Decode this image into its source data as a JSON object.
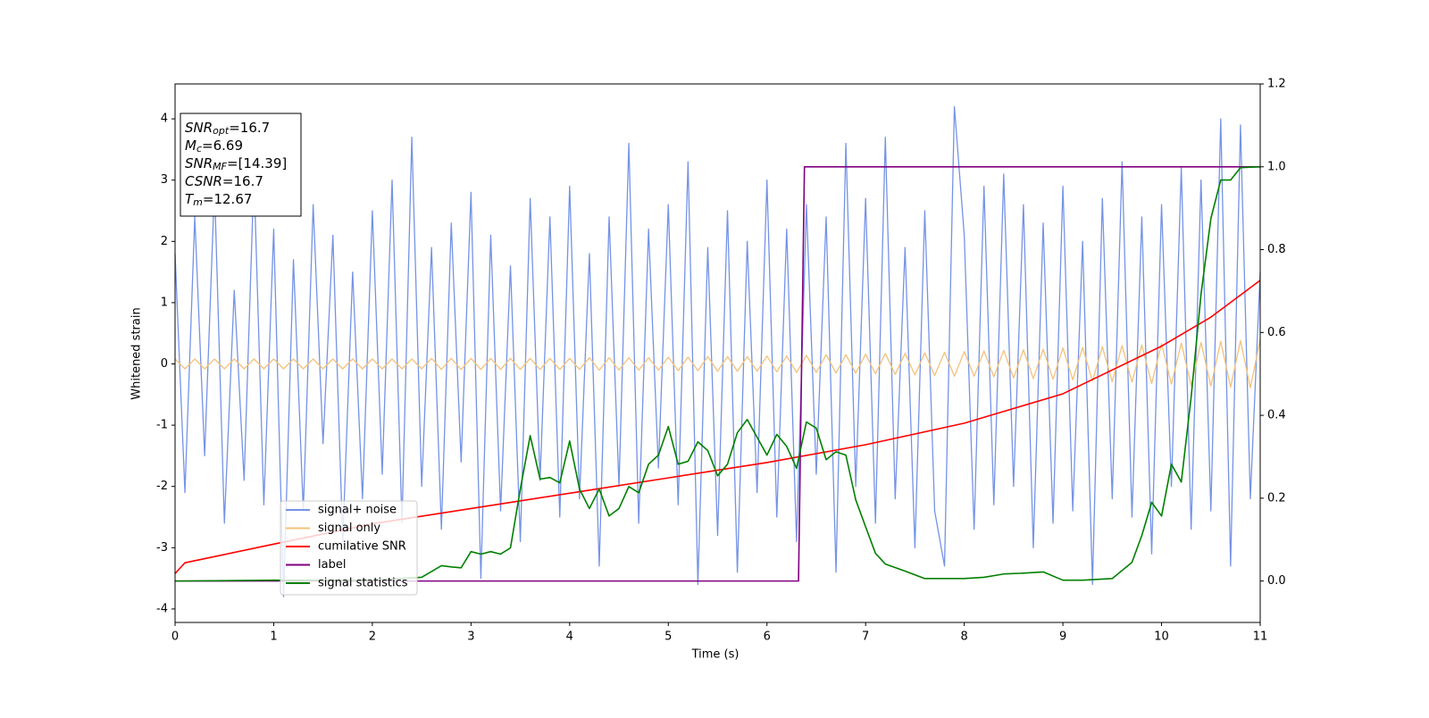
{
  "chart_data": {
    "type": "line",
    "xlabel": "Time (s)",
    "ylabel": "Whitened strain",
    "xlim": [
      0,
      11
    ],
    "xticks": [
      0,
      1,
      2,
      3,
      4,
      5,
      6,
      7,
      8,
      9,
      10,
      11
    ],
    "ylim": [
      -4.22,
      4.57
    ],
    "yticks": [
      -4,
      -3,
      -2,
      -1,
      0,
      1,
      2,
      3,
      4
    ],
    "y2lim": [
      -0.1,
      1.2
    ],
    "y2ticks": [
      {
        "value": 0,
        "label": "0.0"
      },
      0.2,
      0.4,
      0.6,
      0.8,
      {
        "value": 1,
        "label": "1.0"
      },
      1.2
    ],
    "legend": "lower left",
    "annotation": [
      {
        "main": "SNR",
        "sub": "opt",
        "rest": "=16.7"
      },
      {
        "main": "M",
        "sub": "c",
        "rest": "=6.69"
      },
      {
        "main": "SNR",
        "sub": "MF",
        "rest": "=[14.39]"
      },
      {
        "main": "CSNR",
        "rest": "=16.7"
      },
      {
        "main": "T",
        "sub": "m",
        "rest": "=12.67"
      }
    ],
    "x": [
      0,
      0.1,
      0.2,
      0.3,
      0.4,
      0.5,
      0.6,
      0.7,
      0.8,
      0.9,
      1,
      1.1,
      1.2,
      1.3,
      1.4,
      1.5,
      1.6,
      1.7,
      1.8,
      1.9,
      2,
      2.1,
      2.2,
      2.3,
      2.4,
      2.5,
      2.6,
      2.7,
      2.8,
      2.9,
      3,
      3.1,
      3.2,
      3.3,
      3.4,
      3.5,
      3.6,
      3.7,
      3.8,
      3.9,
      4,
      4.1,
      4.2,
      4.3,
      4.4,
      4.5,
      4.6,
      4.7,
      4.8,
      4.9,
      5,
      5.1,
      5.2,
      5.3,
      5.4,
      5.5,
      5.6,
      5.7,
      5.8,
      5.9,
      6,
      6.1,
      6.2,
      6.3,
      6.4,
      6.5,
      6.6,
      6.7,
      6.8,
      6.9,
      7,
      7.1,
      7.2,
      7.3,
      7.4,
      7.5,
      7.6,
      7.7,
      7.8,
      7.9,
      8,
      8.1,
      8.2,
      8.3,
      8.4,
      8.5,
      8.6,
      8.7,
      8.8,
      8.9,
      9,
      9.1,
      9.2,
      9.3,
      9.4,
      9.5,
      9.6,
      9.7,
      9.8,
      9.9,
      10,
      10.1,
      10.2,
      10.3,
      10.4,
      10.5,
      10.6,
      10.7,
      10.8,
      10.9,
      11
    ],
    "series": [
      {
        "name": "signal+ noise",
        "color": "#7593e6",
        "values": [
          1.8,
          -2.1,
          2.4,
          -1.5,
          2.9,
          -2.6,
          1.2,
          -1.9,
          3.1,
          -2.3,
          2.2,
          -3.8,
          1.7,
          -2.4,
          2.6,
          -1.3,
          2.1,
          -2.9,
          1.5,
          -2.2,
          2.5,
          -1.8,
          3.0,
          -2.6,
          3.7,
          -2.0,
          1.9,
          -2.7,
          2.3,
          -1.6,
          2.8,
          -3.5,
          2.1,
          -2.4,
          1.6,
          -2.9,
          2.7,
          -1.9,
          2.4,
          -2.5,
          2.9,
          -2.2,
          1.8,
          -3.3,
          2.4,
          -2.0,
          3.6,
          -2.6,
          2.2,
          -1.7,
          2.6,
          -2.3,
          3.3,
          -3.6,
          1.9,
          -2.8,
          2.5,
          -3.4,
          2.0,
          -2.1,
          3.0,
          -2.5,
          2.2,
          -2.9,
          2.6,
          -1.8,
          2.4,
          -3.4,
          3.6,
          -2.0,
          2.7,
          -2.6,
          3.7,
          -2.2,
          1.9,
          -3.0,
          2.5,
          -2.4,
          -3.3,
          4.2,
          2.1,
          -2.7,
          2.9,
          -2.3,
          3.1,
          -2.0,
          2.6,
          -3.0,
          2.3,
          -2.6,
          2.9,
          -2.4,
          2.0,
          -3.6,
          2.7,
          -2.2,
          3.3,
          -2.5,
          2.4,
          -3.1,
          2.6,
          -2.0,
          3.2,
          -2.7,
          3.0,
          -2.4,
          4.0,
          -3.3,
          3.9,
          -2.2,
          1.5
        ]
      },
      {
        "name": "signal only",
        "color": "#f4c27a",
        "values": [
          0.08,
          -0.08,
          0.08,
          -0.08,
          0.08,
          -0.08,
          0.08,
          -0.08,
          0.08,
          -0.08,
          0.08,
          -0.08,
          0.08,
          -0.08,
          0.08,
          -0.08,
          0.08,
          -0.08,
          0.08,
          -0.08,
          0.08,
          -0.08,
          0.08,
          -0.08,
          0.08,
          -0.08,
          0.09,
          -0.09,
          0.09,
          -0.09,
          0.09,
          -0.09,
          0.09,
          -0.09,
          0.09,
          -0.09,
          0.09,
          -0.09,
          0.09,
          -0.09,
          0.09,
          -0.09,
          0.1,
          -0.1,
          0.1,
          -0.1,
          0.1,
          -0.1,
          0.1,
          -0.1,
          0.11,
          -0.11,
          0.11,
          -0.11,
          0.12,
          -0.12,
          0.12,
          -0.12,
          0.12,
          -0.12,
          0.13,
          -0.13,
          0.13,
          -0.14,
          0.14,
          -0.14,
          0.15,
          -0.15,
          0.15,
          -0.15,
          0.16,
          -0.16,
          0.17,
          -0.17,
          0.17,
          -0.18,
          0.18,
          -0.19,
          0.19,
          -0.2,
          0.2,
          -0.2,
          0.21,
          -0.21,
          0.22,
          -0.23,
          0.23,
          -0.24,
          0.24,
          -0.25,
          0.26,
          -0.26,
          0.27,
          -0.28,
          0.28,
          -0.29,
          0.3,
          -0.3,
          0.31,
          -0.32,
          0.33,
          -0.33,
          0.34,
          -0.35,
          0.35,
          -0.36,
          0.37,
          -0.38,
          0.38,
          -0.39,
          0.4
        ]
      },
      {
        "name": "cumilative SNR",
        "color": "#ff0000",
        "axis": "y2",
        "x": [
          0,
          0.1,
          0.5,
          1,
          2,
          3,
          4,
          5,
          6,
          7,
          8,
          9,
          10,
          10.5,
          11
        ],
        "values": [
          0.018,
          0.044,
          0.064,
          0.089,
          0.138,
          0.175,
          0.212,
          0.249,
          0.286,
          0.329,
          0.381,
          0.452,
          0.567,
          0.637,
          0.726
        ]
      },
      {
        "name": "label",
        "color": "#800080",
        "axis": "y2",
        "x": [
          0,
          6.32,
          6.38,
          11
        ],
        "values": [
          0,
          0,
          1,
          1
        ]
      },
      {
        "name": "signal statistics",
        "color": "#008000",
        "axis": "y2",
        "x": [
          0,
          1,
          2,
          2.5,
          2.7,
          2.8,
          2.9,
          3,
          3.1,
          3.2,
          3.3,
          3.4,
          3.5,
          3.6,
          3.7,
          3.8,
          3.9,
          4,
          4.1,
          4.2,
          4.3,
          4.4,
          4.5,
          4.6,
          4.7,
          4.8,
          4.9,
          5,
          5.1,
          5.2,
          5.3,
          5.4,
          5.5,
          5.6,
          5.7,
          5.8,
          5.9,
          6,
          6.1,
          6.2,
          6.3,
          6.4,
          6.5,
          6.6,
          6.7,
          6.8,
          6.9,
          7,
          7.1,
          7.2,
          7.4,
          7.6,
          8,
          8.2,
          8.4,
          8.6,
          8.8,
          9,
          9.2,
          9.5,
          9.7,
          9.8,
          9.9,
          10,
          10.1,
          10.2,
          10.3,
          10.4,
          10.5,
          10.6,
          10.7,
          10.8,
          11
        ],
        "values": [
          0,
          0.002,
          0.002,
          0.009,
          0.037,
          0.034,
          0.032,
          0.071,
          0.065,
          0.071,
          0.065,
          0.08,
          0.222,
          0.351,
          0.246,
          0.25,
          0.237,
          0.338,
          0.222,
          0.175,
          0.222,
          0.157,
          0.175,
          0.228,
          0.213,
          0.282,
          0.304,
          0.373,
          0.282,
          0.289,
          0.336,
          0.315,
          0.254,
          0.282,
          0.358,
          0.39,
          0.347,
          0.304,
          0.354,
          0.325,
          0.272,
          0.384,
          0.369,
          0.293,
          0.312,
          0.304,
          0.196,
          0.131,
          0.067,
          0.041,
          0.024,
          0.006,
          0.006,
          0.009,
          0.017,
          0.019,
          0.022,
          0.002,
          0.002,
          0.006,
          0.045,
          0.11,
          0.19,
          0.157,
          0.282,
          0.239,
          0.444,
          0.692,
          0.875,
          0.968,
          0.968,
          0.998,
          1
        ]
      }
    ]
  }
}
